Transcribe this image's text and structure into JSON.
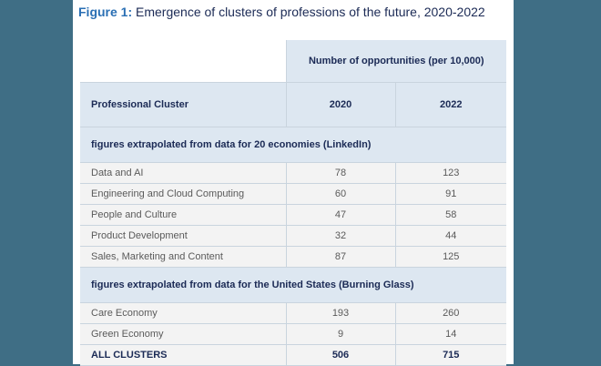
{
  "figure": {
    "label": "Figure 1:",
    "title": "Emergence of clusters of professions of the future, 2020-2022"
  },
  "table": {
    "group_header": "Number of opportunities (per 10,000)",
    "columns": [
      "Professional Cluster",
      "2020",
      "2022"
    ],
    "sections": [
      {
        "heading": "figures extrapolated from data for 20 economies (LinkedIn)",
        "rows": [
          {
            "name": "Data and AI",
            "y2020": "78",
            "y2022": "123"
          },
          {
            "name": "Engineering and Cloud Computing",
            "y2020": "60",
            "y2022": "91"
          },
          {
            "name": "People and Culture",
            "y2020": "47",
            "y2022": "58"
          },
          {
            "name": "Product Development",
            "y2020": "32",
            "y2022": "44"
          },
          {
            "name": "Sales, Marketing and Content",
            "y2020": "87",
            "y2022": "125"
          }
        ]
      },
      {
        "heading": "figures extrapolated from data for the United States (Burning Glass)",
        "rows": [
          {
            "name": "Care Economy",
            "y2020": "193",
            "y2022": "260"
          },
          {
            "name": "Green Economy",
            "y2020": "9",
            "y2022": "14"
          }
        ]
      }
    ],
    "total": {
      "name": "ALL CLUSTERS",
      "y2020": "506",
      "y2022": "715"
    }
  }
}
